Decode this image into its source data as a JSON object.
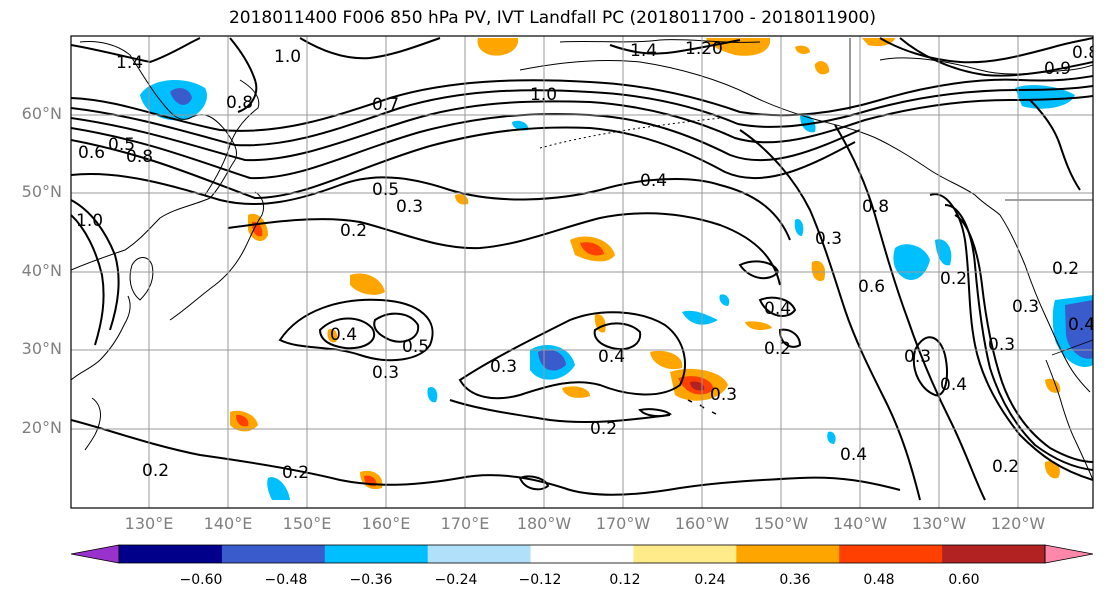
{
  "title": "2018011400 F006 850 hPa PV, IVT Landfall PC (2018011700 - 2018011900)",
  "lat_labels": [
    "60°N",
    "50°N",
    "40°N",
    "30°N",
    "20°N"
  ],
  "lon_labels": [
    "130°E",
    "140°E",
    "150°E",
    "160°E",
    "170°E",
    "180°W",
    "170°W",
    "160°W",
    "150°W",
    "140°W",
    "130°W",
    "120°W"
  ],
  "colorbar": {
    "colors": [
      "#9932CC",
      "#00008B",
      "#3A5BCC",
      "#00BFFF",
      "#B0E0FA",
      "#FFFFFF",
      "#FFEB8A",
      "#FFA500",
      "#FF4000",
      "#B22222",
      "#FF88AA"
    ],
    "ticks": [
      "−0.60",
      "−0.48",
      "−0.36",
      "−0.24",
      "−0.12",
      "0.12",
      "0.24",
      "0.36",
      "0.48",
      "0.60"
    ]
  },
  "contour_labels": [
    "1.4",
    "1.0",
    "0.8",
    "1.4",
    "1.20",
    "0.6",
    "0.5",
    "0.8",
    "0.7",
    "1.0",
    "1.0",
    "0.5",
    "0.3",
    "0.2",
    "0.4",
    "0.3",
    "0.8",
    "0.6",
    "0.2",
    "0.4",
    "0.3",
    "0.5",
    "0.4",
    "0.3",
    "0.2",
    "0.2",
    "0.3",
    "0.4",
    "0.3",
    "0.4",
    "0.2",
    "0.2",
    "0.2",
    "0.4",
    "0.2",
    "0.4",
    "0.3",
    "0.9",
    "0.8",
    "0.3"
  ]
}
